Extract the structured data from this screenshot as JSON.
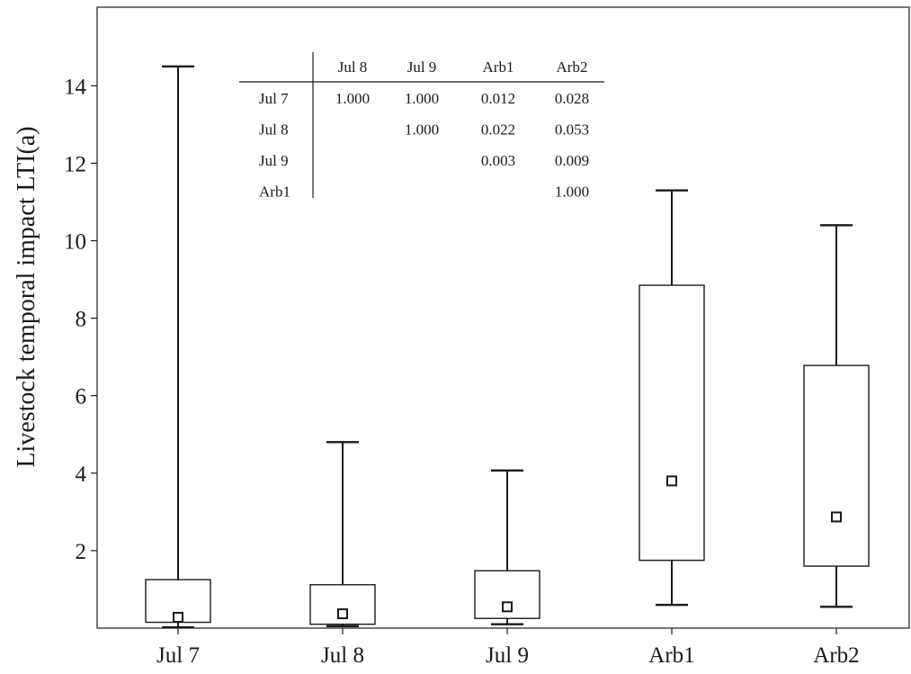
{
  "chart_data": {
    "type": "box",
    "title": "",
    "xlabel": "",
    "ylabel": "Livestock temporal impact LTI(a)",
    "ylim": [
      0,
      16
    ],
    "yticks": [
      2,
      4,
      6,
      8,
      10,
      12,
      14
    ],
    "grid": false,
    "categories": [
      "Jul 7",
      "Jul 8",
      "Jul 9",
      "Arb1",
      "Arb2"
    ],
    "boxes": [
      {
        "category": "Jul 7",
        "whisker_low": 0.02,
        "q1": 0.15,
        "median": 0.28,
        "q3": 1.25,
        "whisker_high": 14.5
      },
      {
        "category": "Jul 8",
        "whisker_low": 0.05,
        "q1": 0.1,
        "median": 0.37,
        "q3": 1.12,
        "whisker_high": 4.8
      },
      {
        "category": "Jul 9",
        "whisker_low": 0.1,
        "q1": 0.25,
        "median": 0.55,
        "q3": 1.48,
        "whisker_high": 4.07
      },
      {
        "category": "Arb1",
        "whisker_low": 0.6,
        "q1": 1.75,
        "median": 3.8,
        "q3": 8.85,
        "whisker_high": 11.3
      },
      {
        "category": "Arb2",
        "whisker_low": 0.55,
        "q1": 1.6,
        "median": 2.87,
        "q3": 6.78,
        "whisker_high": 10.4
      }
    ],
    "inset_table": {
      "columns": [
        "Jul 8",
        "Jul 9",
        "Arb1",
        "Arb2"
      ],
      "rows": [
        {
          "label": "Jul 7",
          "cells": [
            "1.000",
            "1.000",
            "0.012",
            "0.028"
          ]
        },
        {
          "label": "Jul 8",
          "cells": [
            "",
            "1.000",
            "0.022",
            "0.053"
          ]
        },
        {
          "label": "Jul 9",
          "cells": [
            "",
            "",
            "0.003",
            "0.009"
          ]
        },
        {
          "label": "Arb1",
          "cells": [
            "",
            "",
            "",
            "1.000"
          ]
        }
      ]
    }
  }
}
